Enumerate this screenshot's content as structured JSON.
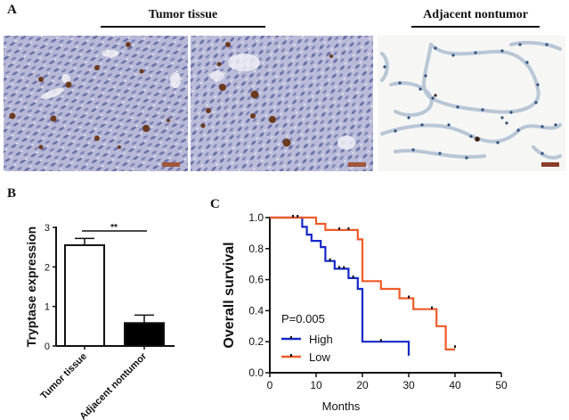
{
  "figure": {
    "panel_a": {
      "letter": "A",
      "group_labels": [
        "Tumor tissue",
        "Adjacent nontumor"
      ],
      "images": [
        {
          "name": "tumor-tissue-ihc-1",
          "stain_bg": "#b7b9d6",
          "nuclei": "#5a5f9c",
          "positive": "#6b3a1e"
        },
        {
          "name": "tumor-tissue-ihc-2",
          "stain_bg": "#b9bbd8",
          "nuclei": "#5a5f9c",
          "positive": "#6b3a1e"
        },
        {
          "name": "adjacent-nontumor-ihc",
          "stain_bg": "#f6f6f4",
          "nuclei": "#2f4f7c",
          "positive": "#3a2010"
        }
      ],
      "scale_bar_color": "#a0563a"
    },
    "panel_b": {
      "letter": "B"
    },
    "panel_c": {
      "letter": "C"
    }
  },
  "chart_data": [
    {
      "type": "bar",
      "title": "",
      "xlabel": "",
      "ylabel": "Tryptase expression",
      "categories": [
        "Tumor tissue",
        "Adjacent nontumor"
      ],
      "values": [
        2.55,
        0.58
      ],
      "error": [
        0.17,
        0.2
      ],
      "bar_fills": [
        "#ffffff",
        "#000000"
      ],
      "ylim": [
        0,
        3
      ],
      "yticks": [
        0,
        1,
        2,
        3
      ],
      "significance": "**"
    },
    {
      "type": "line",
      "subtype": "kaplan-meier",
      "title": "",
      "xlabel": "Months",
      "ylabel": "Overall survival",
      "xlim": [
        0,
        50
      ],
      "ylim": [
        0,
        1.0
      ],
      "xticks": [
        0,
        10,
        20,
        30,
        40,
        50
      ],
      "yticks": [
        "0.0",
        "0.2",
        "0.4",
        "0.6",
        "0.8",
        "1.0"
      ],
      "annotation": "P=0.005",
      "legend": [
        "High",
        "Low"
      ],
      "series": [
        {
          "name": "High",
          "color": "#1428c8",
          "steps": [
            [
              0,
              1.0
            ],
            [
              7,
              1.0
            ],
            [
              7,
              0.94
            ],
            [
              8,
              0.94
            ],
            [
              8,
              0.89
            ],
            [
              9,
              0.89
            ],
            [
              9,
              0.85
            ],
            [
              11,
              0.85
            ],
            [
              11,
              0.81
            ],
            [
              12,
              0.81
            ],
            [
              12,
              0.72
            ],
            [
              14,
              0.72
            ],
            [
              14,
              0.67
            ],
            [
              17,
              0.67
            ],
            [
              17,
              0.61
            ],
            [
              19,
              0.61
            ],
            [
              19,
              0.54
            ],
            [
              20,
              0.54
            ],
            [
              20,
              0.2
            ],
            [
              30,
              0.2
            ],
            [
              30,
              0.11
            ]
          ],
          "censored": [
            [
              13,
              0.72
            ],
            [
              15,
              0.67
            ],
            [
              16,
              0.67
            ],
            [
              18,
              0.61
            ],
            [
              24,
              0.2
            ]
          ]
        },
        {
          "name": "Low",
          "color": "#f05a28",
          "steps": [
            [
              0,
              1.0
            ],
            [
              10,
              1.0
            ],
            [
              10,
              0.96
            ],
            [
              12,
              0.96
            ],
            [
              12,
              0.92
            ],
            [
              19,
              0.92
            ],
            [
              19,
              0.86
            ],
            [
              20,
              0.86
            ],
            [
              20,
              0.59
            ],
            [
              24,
              0.59
            ],
            [
              24,
              0.54
            ],
            [
              28,
              0.54
            ],
            [
              28,
              0.48
            ],
            [
              31,
              0.48
            ],
            [
              31,
              0.41
            ],
            [
              36,
              0.41
            ],
            [
              36,
              0.3
            ],
            [
              38,
              0.3
            ],
            [
              38,
              0.15
            ],
            [
              40,
              0.15
            ]
          ],
          "censored": [
            [
              5,
              1.0
            ],
            [
              6,
              1.0
            ],
            [
              15,
              0.92
            ],
            [
              17,
              0.92
            ],
            [
              30,
              0.48
            ],
            [
              35,
              0.41
            ],
            [
              40,
              0.16
            ]
          ]
        }
      ]
    }
  ]
}
